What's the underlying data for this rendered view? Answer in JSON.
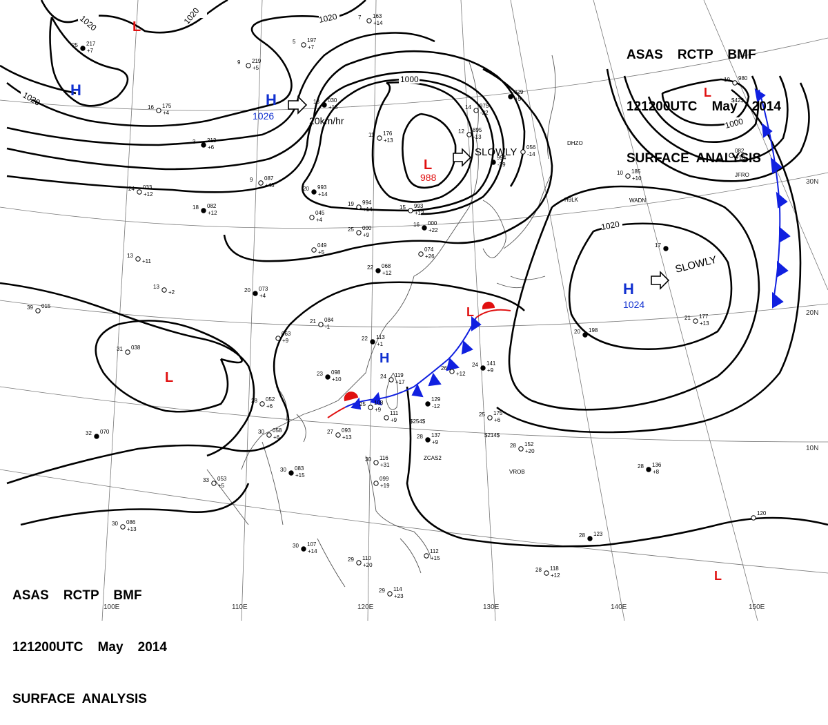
{
  "header": {
    "line1": "ASAS    RCTP    BMF",
    "line2": "121200UTC    May    2014",
    "line3": "SURFACE  ANALYSIS"
  },
  "colors": {
    "isobar": "#000000",
    "high": "#1030d0",
    "low": "#e01010",
    "cold_front": "#1020e0",
    "warm_front": "#e01010",
    "graticule": "#777777",
    "coast": "#555555"
  },
  "pressure_systems": [
    {
      "type": "H",
      "value": "1026",
      "motion": "20km/hr"
    },
    {
      "type": "L",
      "value": "988",
      "motion": "SLOWLY"
    },
    {
      "type": "H",
      "value": "1024",
      "motion": "SLOWLY"
    },
    {
      "type": "H",
      "value": ""
    },
    {
      "type": "H",
      "value": ""
    },
    {
      "type": "L",
      "value": ""
    },
    {
      "type": "L",
      "value": ""
    },
    {
      "type": "L",
      "value": ""
    },
    {
      "type": "L",
      "value": ""
    },
    {
      "type": "L",
      "value": ""
    }
  ],
  "isobar_labels": [
    "1020",
    "1020",
    "1020",
    "1020",
    "1000",
    "1020",
    "1000"
  ],
  "lon_labels": [
    "100E",
    "110E",
    "120E",
    "130E",
    "140E",
    "150E"
  ],
  "lat_labels": [
    "30N",
    "20N",
    "10N"
  ],
  "stations": [
    {
      "t": "25",
      "p": "217",
      "tend": "+7"
    },
    {
      "t": "9",
      "p": "219",
      "tend": "+5"
    },
    {
      "t": "16",
      "p": "175",
      "tend": "+4"
    },
    {
      "t": "3",
      "p": "213",
      "tend": "+6"
    },
    {
      "t": "7",
      "p": "163",
      "tend": "+14"
    },
    {
      "t": "5",
      "p": "197",
      "tend": "+7"
    },
    {
      "t": "13",
      "p": "030",
      "tend": "+15"
    },
    {
      "t": "14",
      "p": "975",
      "tend": "-22"
    },
    {
      "t": "12",
      "p": "895",
      "tend": "-13"
    },
    {
      "t": "",
      "p": "029",
      "tend": "+5"
    },
    {
      "t": "11",
      "p": "176",
      "tend": "+13"
    },
    {
      "t": "9",
      "p": "087",
      "tend": "+43"
    },
    {
      "t": "20",
      "p": "993",
      "tend": "+14"
    },
    {
      "t": "19",
      "p": "994",
      "tend": "+14"
    },
    {
      "t": "15",
      "p": "993",
      "tend": "+12"
    },
    {
      "t": "",
      "p": "994",
      "tend": "-29"
    },
    {
      "t": "",
      "p": "056",
      "tend": "-14"
    },
    {
      "t": "24",
      "p": "033",
      "tend": "+12"
    },
    {
      "t": "18",
      "p": "082",
      "tend": "+12"
    },
    {
      "t": "",
      "p": "045",
      "tend": "+4"
    },
    {
      "t": "25",
      "p": "000",
      "tend": "+9"
    },
    {
      "t": "16",
      "p": "000",
      "tend": "+22"
    },
    {
      "t": "",
      "p": "049",
      "tend": "+5"
    },
    {
      "t": "",
      "p": "074",
      "tend": "+26"
    },
    {
      "t": "22",
      "p": "068",
      "tend": "+12"
    },
    {
      "t": "13",
      "p": "",
      "tend": "+11"
    },
    {
      "t": "13",
      "p": "",
      "tend": "+2"
    },
    {
      "t": "20",
      "p": "073",
      "tend": "+4"
    },
    {
      "t": "39",
      "p": "015",
      "tend": ""
    },
    {
      "t": "21",
      "p": "084",
      "tend": "-1"
    },
    {
      "t": "22",
      "p": "113",
      "tend": "+1"
    },
    {
      "t": "",
      "p": "063",
      "tend": "+9"
    },
    {
      "t": "31",
      "p": "038",
      "tend": ""
    },
    {
      "t": "23",
      "p": "098",
      "tend": "+10"
    },
    {
      "t": "24",
      "p": "119",
      "tend": "+17"
    },
    {
      "t": "26",
      "p": "",
      "tend": "+12"
    },
    {
      "t": "24",
      "p": "141",
      "tend": "+9"
    },
    {
      "t": "28",
      "p": "052",
      "tend": "+6"
    },
    {
      "t": "25",
      "p": "108",
      "tend": "+9"
    },
    {
      "t": "",
      "p": "129",
      "tend": "-12"
    },
    {
      "t": "",
      "p": "111",
      "tend": "+9"
    },
    {
      "t": "25",
      "p": "175",
      "tend": "+6"
    },
    {
      "t": "32",
      "p": "070",
      "tend": ""
    },
    {
      "t": "30",
      "p": "058",
      "tend": "+6"
    },
    {
      "t": "27",
      "p": "093",
      "tend": "+13"
    },
    {
      "t": "28",
      "p": "137",
      "tend": "+9"
    },
    {
      "t": "28",
      "p": "152",
      "tend": "+20"
    },
    {
      "t": "33",
      "p": "053",
      "tend": "+5"
    },
    {
      "t": "30",
      "p": "083",
      "tend": "+15"
    },
    {
      "t": "30",
      "p": "116",
      "tend": "+31"
    },
    {
      "t": "",
      "p": "099",
      "tend": "+19"
    },
    {
      "t": "28",
      "p": "136",
      "tend": "+8"
    },
    {
      "t": "30",
      "p": "086",
      "tend": "+13"
    },
    {
      "t": "",
      "p": "120",
      "tend": ""
    },
    {
      "t": "30",
      "p": "107",
      "tend": "+14"
    },
    {
      "t": "29",
      "p": "110",
      "tend": "+20"
    },
    {
      "t": "",
      "p": "112",
      "tend": "+15"
    },
    {
      "t": "28",
      "p": "123",
      "tend": ""
    },
    {
      "t": "28",
      "p": "118",
      "tend": "+12"
    },
    {
      "t": "29",
      "p": "114",
      "tend": "+23"
    },
    {
      "t": "20",
      "p": "198",
      "tend": ""
    },
    {
      "t": "21",
      "p": "177",
      "tend": "+13"
    },
    {
      "t": "10",
      "p": "185",
      "tend": "+10"
    },
    {
      "t": "17",
      "p": "",
      "tend": ""
    },
    {
      "t": "10",
      "p": "980",
      "tend": ""
    },
    {
      "t": "",
      "p": "082",
      "tend": "+10"
    }
  ],
  "station_ids": [
    "DHZO",
    "H9LK",
    "WADN",
    "JFRO",
    "ZCAS2",
    "VROB",
    "$214$",
    "$254$",
    "$42$"
  ]
}
